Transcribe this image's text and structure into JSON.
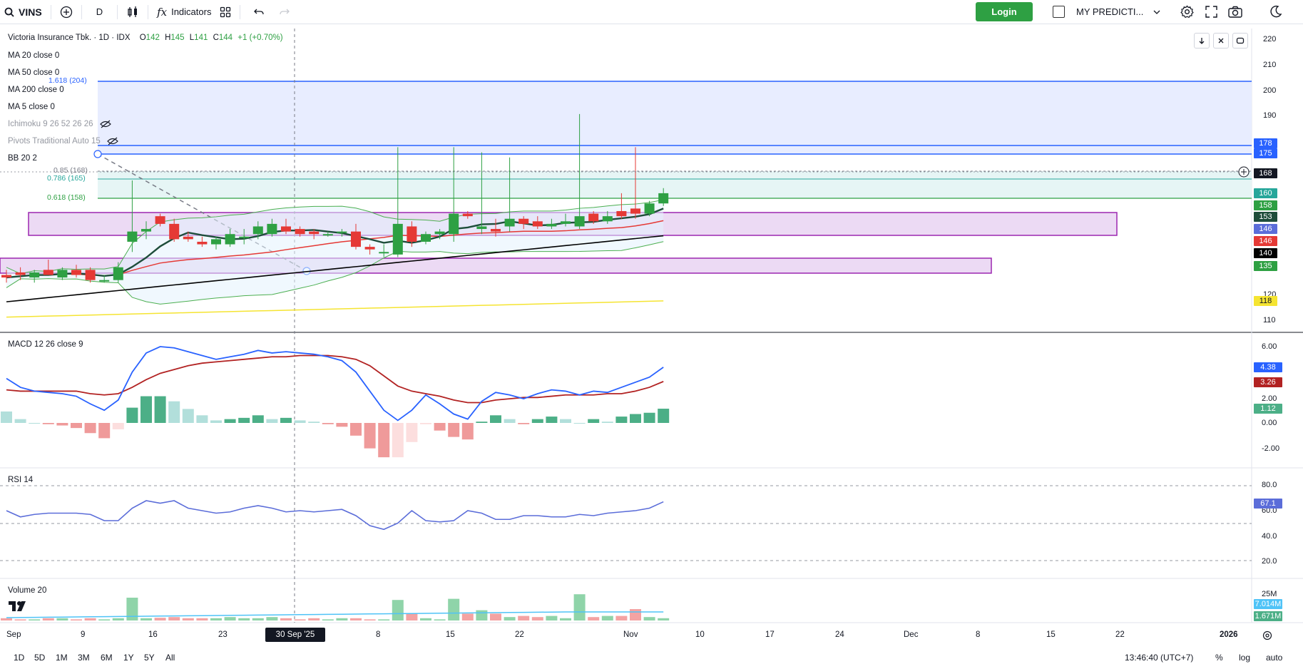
{
  "toolbar": {
    "symbol": "VINS",
    "interval": "D",
    "indicators_label": "Indicators",
    "login_label": "Login",
    "prediction_label": "MY PREDICTI..."
  },
  "legend": {
    "title": "Victoria Insurance Tbk. · 1D · IDX",
    "ohlc": {
      "o_label": "O",
      "o": "142",
      "h_label": "H",
      "h": "145",
      "l_label": "L",
      "l": "141",
      "c_label": "C",
      "c": "144",
      "change": "+1 (+0.70%)"
    },
    "lines": [
      "MA 20 close 0",
      "MA 50 close 0",
      "MA 200 close 0",
      "MA 5 close 0",
      "Ichimoku 9 26 52 26 26",
      "Pivots Traditional Auto 15",
      "BB 20 2"
    ],
    "macd": "MACD 12 26 close 9",
    "rsi": "RSI 14",
    "volume": "Volume 20"
  },
  "fib": {
    "l1618": "1.618 (204)",
    "l085": "0.85 (168)",
    "l0786": "0.786 (165)",
    "l0618": "0.618 (158)"
  },
  "price_axis": {
    "ticks": [
      "220",
      "210",
      "200",
      "190",
      "120",
      "110"
    ],
    "tags": [
      {
        "text": "178",
        "color": "#2962ff"
      },
      {
        "text": "175",
        "color": "#2962ff"
      },
      {
        "text": "168",
        "color": "#131722"
      },
      {
        "text": "160",
        "color": "#26a69a"
      },
      {
        "text": "158",
        "color": "#2ea043"
      },
      {
        "text": "153",
        "color": "#1e4d3a"
      },
      {
        "text": "146",
        "color": "#5b6dd9"
      },
      {
        "text": "146",
        "color": "#e53935"
      },
      {
        "text": "140",
        "color": "#000000"
      },
      {
        "text": "135",
        "color": "#2ea043"
      },
      {
        "text": "118",
        "color": "#f5e431",
        "dark": true
      }
    ]
  },
  "macd_axis": {
    "ticks": [
      "6.00",
      "2.00",
      "0.00",
      "-2.00"
    ],
    "tags": [
      {
        "text": "4.38",
        "color": "#2962ff"
      },
      {
        "text": "3.26",
        "color": "#b22222"
      },
      {
        "text": "1.12",
        "color": "#4caf87"
      }
    ]
  },
  "rsi_axis": {
    "ticks": [
      "80.0",
      "60.0",
      "40.0",
      "20.0"
    ],
    "tags": [
      {
        "text": "67.1",
        "color": "#5b6dd9"
      }
    ]
  },
  "volume_axis": {
    "ticks": [
      "25M"
    ],
    "tags": [
      {
        "text": "7.014M",
        "color": "#4fc3f7"
      },
      {
        "text": "1.671M",
        "color": "#4caf87"
      }
    ]
  },
  "time_axis": {
    "labels": [
      "Sep",
      "9",
      "16",
      "23",
      "8",
      "15",
      "22",
      "Nov",
      "10",
      "17",
      "24",
      "Dec",
      "8",
      "15",
      "22",
      "2026"
    ],
    "crosshair_label": "30 Sep '25"
  },
  "bottombar": {
    "ranges": [
      "1D",
      "5D",
      "1M",
      "3M",
      "6M",
      "1Y",
      "5Y",
      "All"
    ],
    "clock": "13:46:40 (UTC+7)",
    "percent": "%",
    "log": "log",
    "auto": "auto"
  },
  "chart_data": {
    "type": "candlestick",
    "title": "Victoria Insurance Tbk. · 1D · IDX",
    "ylim": [
      108,
      222
    ],
    "candles": [
      {
        "o": 128,
        "h": 130,
        "l": 125,
        "c": 127
      },
      {
        "o": 129,
        "h": 131,
        "l": 126,
        "c": 128
      },
      {
        "o": 127,
        "h": 130,
        "l": 125,
        "c": 129
      },
      {
        "o": 130,
        "h": 134,
        "l": 128,
        "c": 128
      },
      {
        "o": 127,
        "h": 131,
        "l": 126,
        "c": 130
      },
      {
        "o": 130,
        "h": 132,
        "l": 127,
        "c": 128
      },
      {
        "o": 130,
        "h": 131,
        "l": 125,
        "c": 126
      },
      {
        "o": 126,
        "h": 128,
        "l": 125,
        "c": 126
      },
      {
        "o": 126,
        "h": 133,
        "l": 125,
        "c": 131
      },
      {
        "o": 141,
        "h": 165,
        "l": 137,
        "c": 145
      },
      {
        "o": 145,
        "h": 149,
        "l": 142,
        "c": 146
      },
      {
        "o": 151,
        "h": 152,
        "l": 147,
        "c": 148
      },
      {
        "o": 148,
        "h": 150,
        "l": 141,
        "c": 142
      },
      {
        "o": 143,
        "h": 145,
        "l": 141,
        "c": 142
      },
      {
        "o": 141,
        "h": 143,
        "l": 139,
        "c": 140
      },
      {
        "o": 140,
        "h": 143,
        "l": 138,
        "c": 142
      },
      {
        "o": 140,
        "h": 146,
        "l": 139,
        "c": 144
      },
      {
        "o": 143,
        "h": 146,
        "l": 140,
        "c": 143
      },
      {
        "o": 144,
        "h": 149,
        "l": 142,
        "c": 147
      },
      {
        "o": 144,
        "h": 150,
        "l": 143,
        "c": 148
      },
      {
        "o": 147,
        "h": 150,
        "l": 144,
        "c": 145
      },
      {
        "o": 146,
        "h": 147,
        "l": 143,
        "c": 144
      },
      {
        "o": 145,
        "h": 146,
        "l": 142,
        "c": 144
      },
      {
        "o": 144,
        "h": 145,
        "l": 143,
        "c": 144
      },
      {
        "o": 145,
        "h": 146,
        "l": 143,
        "c": 145
      },
      {
        "o": 145,
        "h": 148,
        "l": 138,
        "c": 139
      },
      {
        "o": 139,
        "h": 140,
        "l": 136,
        "c": 138
      },
      {
        "o": 137,
        "h": 140,
        "l": 135,
        "c": 137
      },
      {
        "o": 136,
        "h": 178,
        "l": 135,
        "c": 148
      },
      {
        "o": 147,
        "h": 149,
        "l": 139,
        "c": 141
      },
      {
        "o": 141,
        "h": 145,
        "l": 140,
        "c": 144
      },
      {
        "o": 144,
        "h": 146,
        "l": 142,
        "c": 145
      },
      {
        "o": 144,
        "h": 178,
        "l": 141,
        "c": 152
      },
      {
        "o": 152,
        "h": 153,
        "l": 150,
        "c": 151
      },
      {
        "o": 146,
        "h": 176,
        "l": 144,
        "c": 147
      },
      {
        "o": 146,
        "h": 150,
        "l": 143,
        "c": 145
      },
      {
        "o": 147,
        "h": 174,
        "l": 145,
        "c": 150
      },
      {
        "o": 150,
        "h": 151,
        "l": 146,
        "c": 148
      },
      {
        "o": 149,
        "h": 151,
        "l": 146,
        "c": 147
      },
      {
        "o": 147,
        "h": 150,
        "l": 146,
        "c": 148
      },
      {
        "o": 148,
        "h": 152,
        "l": 147,
        "c": 149
      },
      {
        "o": 147,
        "h": 191,
        "l": 146,
        "c": 151
      },
      {
        "o": 152,
        "h": 153,
        "l": 148,
        "c": 149
      },
      {
        "o": 149,
        "h": 153,
        "l": 148,
        "c": 151
      },
      {
        "o": 153,
        "h": 160,
        "l": 150,
        "c": 151
      },
      {
        "o": 154,
        "h": 178,
        "l": 150,
        "c": 152
      },
      {
        "o": 152,
        "h": 157,
        "l": 151,
        "c": 156
      },
      {
        "o": 156,
        "h": 162,
        "l": 155,
        "c": 160
      }
    ],
    "macd_line": [
      3.5,
      2.8,
      2.5,
      2.4,
      2.3,
      2.1,
      1.5,
      1.0,
      1.8,
      4.0,
      5.5,
      6.0,
      5.9,
      5.6,
      5.3,
      5.0,
      5.2,
      5.4,
      5.7,
      5.5,
      5.6,
      5.5,
      5.4,
      5.2,
      4.9,
      4.0,
      2.5,
      1.0,
      0.2,
      1.0,
      2.2,
      1.5,
      0.7,
      0.3,
      1.7,
      2.4,
      2.2,
      1.9,
      2.3,
      2.6,
      2.5,
      2.2,
      2.5,
      2.4,
      2.8,
      3.2,
      3.6,
      4.38
    ],
    "signal_line": [
      2.6,
      2.5,
      2.5,
      2.5,
      2.5,
      2.5,
      2.3,
      2.2,
      2.3,
      2.8,
      3.4,
      3.9,
      4.2,
      4.5,
      4.7,
      4.8,
      4.9,
      5.0,
      5.1,
      5.2,
      5.2,
      5.3,
      5.3,
      5.3,
      5.2,
      5.0,
      4.5,
      3.7,
      2.9,
      2.5,
      2.3,
      2.1,
      1.8,
      1.6,
      1.6,
      1.8,
      1.9,
      2.0,
      2.0,
      2.1,
      2.2,
      2.2,
      2.2,
      2.3,
      2.3,
      2.5,
      2.8,
      3.26
    ],
    "rsi": [
      60,
      55,
      57,
      58,
      58,
      58,
      57,
      52,
      52,
      62,
      68,
      66,
      68,
      62,
      60,
      58,
      59,
      62,
      64,
      62,
      59,
      60,
      59,
      60,
      61,
      56,
      48,
      45,
      50,
      60,
      52,
      51,
      52,
      60,
      58,
      53,
      53,
      56,
      56,
      55,
      55,
      57,
      56,
      58,
      59,
      60,
      62,
      67.1
    ],
    "volume_ma": "7.014M",
    "last_volume": "1.671M"
  }
}
